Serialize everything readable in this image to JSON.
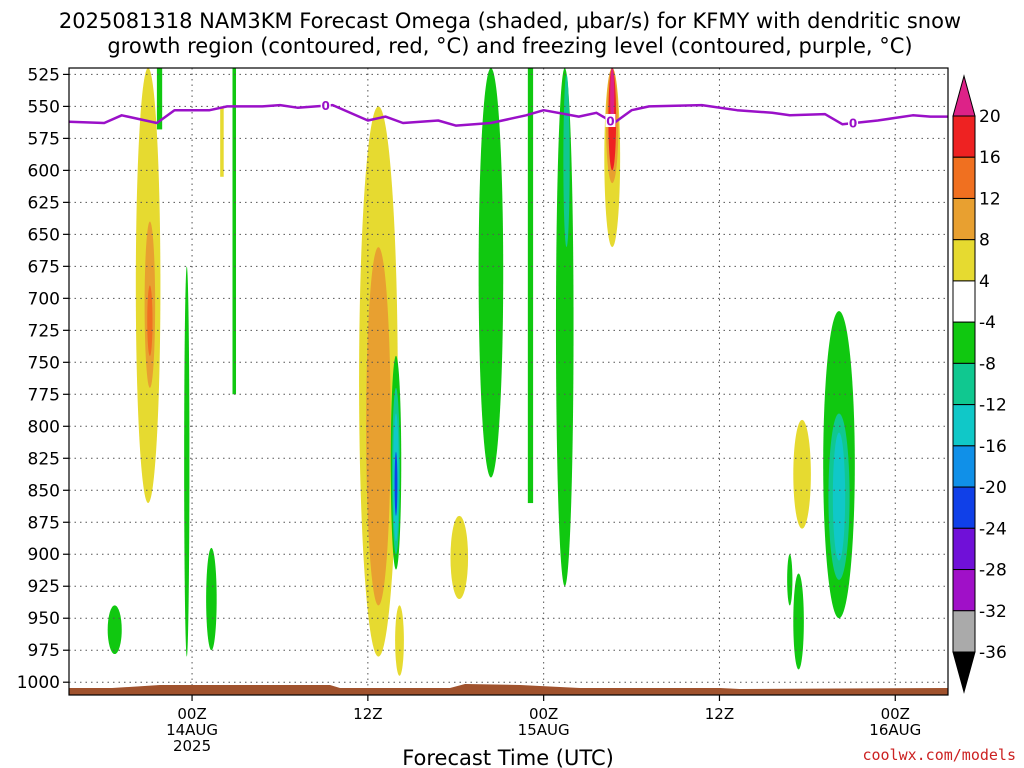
{
  "chart_data": {
    "type": "heatmap",
    "title_line1": "2025081318 NAM3KM Forecast Omega (shaded, µbar/s) for KFMY with dendritic snow",
    "title_line2": "growth region (contoured, red, °C) and freezing level (contoured, purple, °C)",
    "xlabel": "Forecast Time (UTC)",
    "credit": "coolwx.com/models",
    "grid": true,
    "y_axis": {
      "quantity": "pressure (hPa)",
      "range": [
        1010,
        520
      ],
      "ticks": [
        "525",
        "550",
        "575",
        "600",
        "625",
        "650",
        "675",
        "700",
        "725",
        "750",
        "775",
        "800",
        "825",
        "850",
        "875",
        "900",
        "925",
        "950",
        "975",
        "1000"
      ]
    },
    "x_axis": {
      "quantity": "forecast hours from 2025081318",
      "range": [
        -1,
        49
      ],
      "ticks": [
        {
          "hour": 6,
          "lines": [
            "00Z",
            "14AUG",
            "2025"
          ]
        },
        {
          "hour": 16,
          "lines": [
            "12Z"
          ]
        },
        {
          "hour": 26,
          "lines": [
            "00Z",
            "15AUG"
          ]
        },
        {
          "hour": 36,
          "lines": [
            "12Z"
          ]
        },
        {
          "hour": 46,
          "lines": [
            "00Z",
            "16AUG"
          ]
        }
      ]
    },
    "colorbar": {
      "labels": [
        "20",
        "16",
        "12",
        "8",
        "4",
        "-4",
        "-8",
        "-12",
        "-16",
        "-20",
        "-24",
        "-28",
        "-32",
        "-36"
      ],
      "bins": [
        {
          "range": "above 20",
          "color": "#dd2288"
        },
        {
          "range": "16 to 20",
          "color": "#ee2222"
        },
        {
          "range": "12 to 16",
          "color": "#f07020"
        },
        {
          "range": "8 to 12",
          "color": "#e8a030"
        },
        {
          "range": "4 to 8",
          "color": "#e6da30"
        },
        {
          "range": "-4 to 4",
          "color": "#ffffff"
        },
        {
          "range": "-8 to -4",
          "color": "#10c810"
        },
        {
          "range": "-12 to -8",
          "color": "#10c890"
        },
        {
          "range": "-16 to -12",
          "color": "#10c8c8"
        },
        {
          "range": "-20 to -16",
          "color": "#1090e8"
        },
        {
          "range": "-24 to -20",
          "color": "#1040e8"
        },
        {
          "range": "-28 to -24",
          "color": "#7010d8"
        },
        {
          "range": "-32 to -28",
          "color": "#a010c8"
        },
        {
          "range": "-36 to -32",
          "color": "#aaaaaa"
        },
        {
          "range": "below -36",
          "color": "#000000"
        }
      ]
    },
    "freezing_level": {
      "color": "#9a10c8",
      "label": "0",
      "points": [
        [
          -1,
          562
        ],
        [
          1,
          563
        ],
        [
          2,
          557
        ],
        [
          4,
          563
        ],
        [
          5,
          553
        ],
        [
          7,
          553
        ],
        [
          8,
          550
        ],
        [
          10,
          550
        ],
        [
          11,
          549
        ],
        [
          12,
          551
        ],
        [
          14,
          549
        ],
        [
          16,
          561
        ],
        [
          17,
          558
        ],
        [
          18,
          563
        ],
        [
          20,
          561
        ],
        [
          21,
          565
        ],
        [
          23,
          563
        ],
        [
          25,
          557
        ],
        [
          26,
          553
        ],
        [
          28,
          558
        ],
        [
          29,
          555
        ],
        [
          30,
          563
        ],
        [
          31,
          553
        ],
        [
          32,
          550
        ],
        [
          35,
          549
        ],
        [
          37,
          553
        ],
        [
          39,
          555
        ],
        [
          40,
          557
        ],
        [
          42,
          556
        ],
        [
          43,
          564
        ],
        [
          45,
          561
        ],
        [
          47,
          557
        ],
        [
          48,
          558
        ],
        [
          49,
          558
        ]
      ],
      "label_hours": [
        13.6,
        29.8,
        43.6
      ]
    },
    "shaded_regions": [
      {
        "level": "4 to 8",
        "color": "#e6da30",
        "center_hour": 3.5,
        "p_top": 520,
        "p_bottom": 860,
        "half_width_hours": 0.7
      },
      {
        "level": "8 to 12",
        "color": "#e8a030",
        "center_hour": 3.6,
        "p_top": 640,
        "p_bottom": 770,
        "half_width_hours": 0.3
      },
      {
        "level": "12 to 16",
        "color": "#f07020",
        "center_hour": 3.6,
        "p_top": 690,
        "p_bottom": 745,
        "half_width_hours": 0.15
      },
      {
        "level": "4 to 8",
        "color": "#e6da30",
        "center_hour": 16.6,
        "p_top": 550,
        "p_bottom": 980,
        "half_width_hours": 1.1
      },
      {
        "level": "8 to 12",
        "color": "#e8a030",
        "center_hour": 16.6,
        "p_top": 660,
        "p_bottom": 940,
        "half_width_hours": 0.7
      },
      {
        "level": "-8 to -4",
        "color": "#10c810",
        "center_hour": 17.6,
        "p_top": 745,
        "p_bottom": 912,
        "half_width_hours": 0.3
      },
      {
        "level": "-12 to -8",
        "color": "#10c890",
        "center_hour": 17.6,
        "p_top": 770,
        "p_bottom": 900,
        "half_width_hours": 0.22
      },
      {
        "level": "-16 to -12",
        "color": "#10c8c8",
        "center_hour": 17.6,
        "p_top": 790,
        "p_bottom": 890,
        "half_width_hours": 0.16
      },
      {
        "level": "-24 to -20",
        "color": "#1040e8",
        "center_hour": 17.6,
        "p_top": 820,
        "p_bottom": 870,
        "half_width_hours": 0.08
      },
      {
        "level": "-8 to -4",
        "color": "#10c810",
        "center_hour": 23.0,
        "p_top": 520,
        "p_bottom": 840,
        "half_width_hours": 0.7
      },
      {
        "level": "-8 to -4",
        "color": "#10c810",
        "center_hour": 27.2,
        "p_top": 520,
        "p_bottom": 925,
        "half_width_hours": 0.5
      },
      {
        "level": "-12 to -8",
        "color": "#10c890",
        "center_hour": 27.3,
        "p_top": 525,
        "p_bottom": 660,
        "half_width_hours": 0.18
      },
      {
        "level": "4 to 8",
        "color": "#e6da30",
        "center_hour": 29.9,
        "p_top": 520,
        "p_bottom": 660,
        "half_width_hours": 0.45
      },
      {
        "level": "8 to 12",
        "color": "#e8a030",
        "center_hour": 29.9,
        "p_top": 520,
        "p_bottom": 610,
        "half_width_hours": 0.35
      },
      {
        "level": "16 to 20",
        "color": "#ee2222",
        "center_hour": 29.9,
        "p_top": 520,
        "p_bottom": 600,
        "half_width_hours": 0.22
      },
      {
        "level": "above 20",
        "color": "#dd2288",
        "center_hour": 29.9,
        "p_top": 520,
        "p_bottom": 565,
        "half_width_hours": 0.12
      },
      {
        "level": "4 to 8",
        "color": "#e6da30",
        "center_hour": 21.2,
        "p_top": 870,
        "p_bottom": 935,
        "half_width_hours": 0.5
      },
      {
        "level": "4 to 8",
        "color": "#e6da30",
        "center_hour": 40.7,
        "p_top": 795,
        "p_bottom": 880,
        "half_width_hours": 0.5
      },
      {
        "level": "-8 to -4",
        "color": "#10c810",
        "center_hour": 42.8,
        "p_top": 710,
        "p_bottom": 950,
        "half_width_hours": 0.9
      },
      {
        "level": "-12 to -8",
        "color": "#10c890",
        "center_hour": 42.8,
        "p_top": 790,
        "p_bottom": 920,
        "half_width_hours": 0.6
      },
      {
        "level": "-16 to -12",
        "color": "#10c8c8",
        "center_hour": 42.8,
        "p_top": 805,
        "p_bottom": 905,
        "half_width_hours": 0.35
      },
      {
        "level": "4 to 8",
        "color": "#e6da30",
        "center_hour": 17.8,
        "p_top": 940,
        "p_bottom": 995,
        "half_width_hours": 0.25
      },
      {
        "level": "-8 to -4",
        "color": "#10c810",
        "center_hour": 5.7,
        "p_top": 675,
        "p_bottom": 980,
        "half_width_hours": 0.15
      },
      {
        "level": "-8 to -4",
        "color": "#10c810",
        "center_hour": 40.5,
        "p_top": 915,
        "p_bottom": 990,
        "half_width_hours": 0.3
      },
      {
        "level": "-8 to -4",
        "color": "#10c810",
        "center_hour": 40.0,
        "p_top": 900,
        "p_bottom": 940,
        "half_width_hours": 0.15
      },
      {
        "level": "-8 to -4",
        "color": "#10c810",
        "center_hour": 1.6,
        "p_top": 940,
        "p_bottom": 978,
        "half_width_hours": 0.4
      },
      {
        "level": "-8 to -4",
        "color": "#10c810",
        "center_hour": 7.1,
        "p_top": 895,
        "p_bottom": 975,
        "half_width_hours": 0.3
      }
    ],
    "shaded_bands": [
      {
        "level": "-8 to -4",
        "color": "#10c810",
        "hour_left": 4.0,
        "hour_right": 4.3,
        "p_top": 520,
        "p_bottom": 568
      },
      {
        "level": "-8 to -4",
        "color": "#10c810",
        "hour_left": 8.3,
        "hour_right": 8.5,
        "p_top": 520,
        "p_bottom": 775
      },
      {
        "level": "4 to 8",
        "color": "#e6da30",
        "hour_left": 7.6,
        "hour_right": 7.8,
        "p_top": 550,
        "p_bottom": 605
      },
      {
        "level": "-8 to -4",
        "color": "#10c810",
        "hour_left": 25.1,
        "hour_right": 25.4,
        "p_top": 520,
        "p_bottom": 860
      }
    ],
    "surface_color": "#a0522d"
  }
}
